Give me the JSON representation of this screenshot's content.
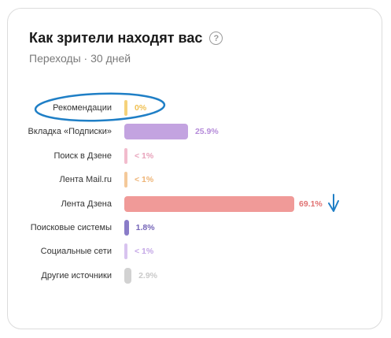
{
  "header": {
    "title": "Как зрители находят вас",
    "help_glyph": "?",
    "subtitle": "Переходы · 30 дней"
  },
  "chart_data": {
    "type": "bar",
    "orientation": "horizontal",
    "categories": [
      "Рекомендации",
      "Вкладка «Подписки»",
      "Поиск в Дзене",
      "Лента Mail.ru",
      "Лента Дзена",
      "Поисковые системы",
      "Социальные сети",
      "Другие источники"
    ],
    "values": [
      0,
      25.9,
      0.5,
      0.5,
      69.1,
      1.8,
      0.5,
      2.9
    ],
    "value_labels": [
      "0%",
      "25.9%",
      "< 1%",
      "< 1%",
      "69.1%",
      "1.8%",
      "< 1%",
      "2.9%"
    ],
    "colors": [
      "#f5d27a",
      "#c3a3e0",
      "#f2bccd",
      "#f4c99a",
      "#f09a98",
      "#8a7cc8",
      "#d8c3ef",
      "#d2d2d2"
    ],
    "label_colors": [
      "#f0c052",
      "#b58bd9",
      "#e8a3bb",
      "#eeb476",
      "#e07272",
      "#7565b8",
      "#c4a7e6",
      "#c9c9c9"
    ],
    "xlim": [
      0,
      69.1
    ]
  },
  "annotations": {
    "ellipse_color": "#1f7fc6",
    "arrow_color": "#1f7fc6"
  }
}
